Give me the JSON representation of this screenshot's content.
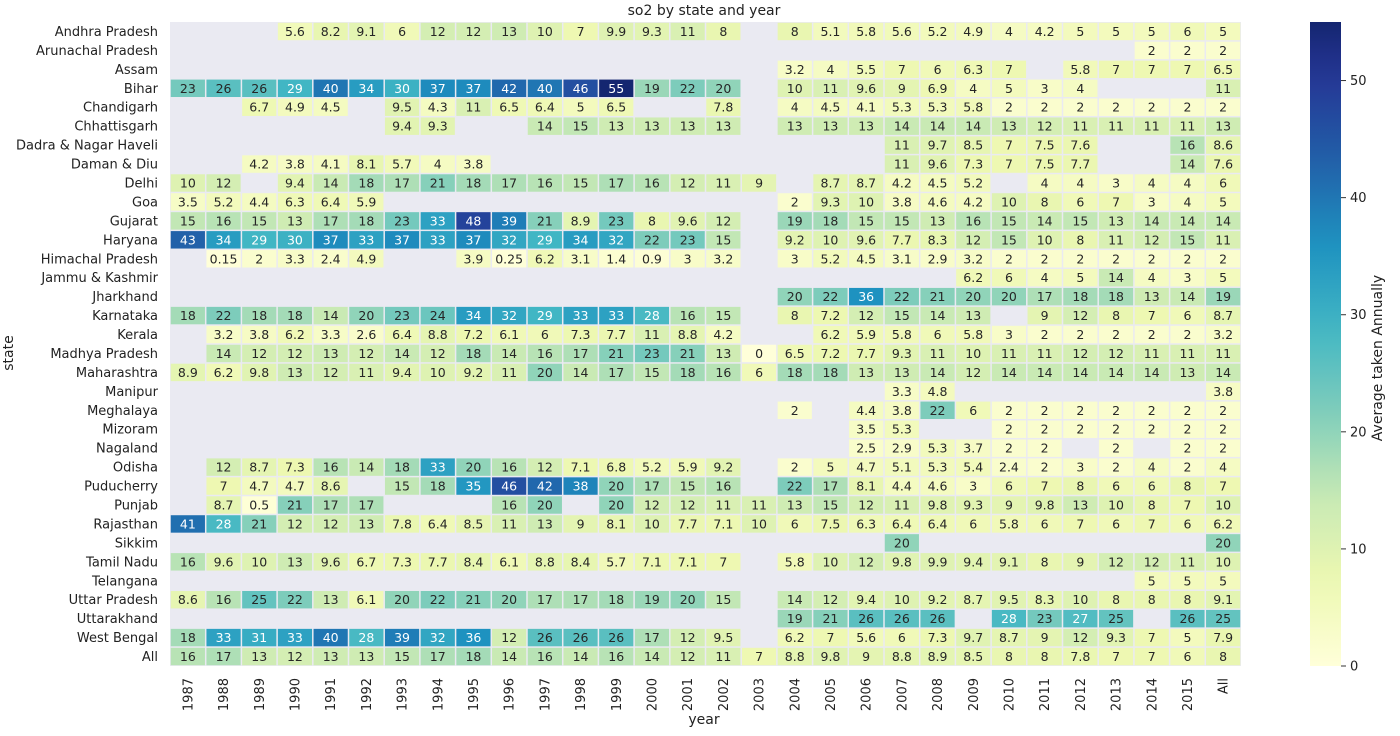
{
  "chart_data": {
    "type": "heatmap",
    "title": "so2 by state and year",
    "xlabel": "year",
    "ylabel": "state",
    "colorbar_label": "Average taken Annually",
    "colorbar_ticks": [
      "0",
      "10",
      "20",
      "30",
      "40",
      "50"
    ],
    "colorbar_range": [
      0,
      55
    ],
    "colormap": "YlGnBu",
    "missing_color": "#eaeaf2",
    "x": [
      "1987",
      "1988",
      "1989",
      "1990",
      "1991",
      "1992",
      "1993",
      "1994",
      "1995",
      "1996",
      "1997",
      "1998",
      "1999",
      "2000",
      "2001",
      "2002",
      "2003",
      "2004",
      "2005",
      "2006",
      "2007",
      "2008",
      "2009",
      "2010",
      "2011",
      "2012",
      "2013",
      "2014",
      "2015",
      "All"
    ],
    "y": [
      "Andhra Pradesh",
      "Arunachal Pradesh",
      "Assam",
      "Bihar",
      "Chandigarh",
      "Chhattisgarh",
      "Dadra & Nagar Haveli",
      "Daman & Diu",
      "Delhi",
      "Goa",
      "Gujarat",
      "Haryana",
      "Himachal Pradesh",
      "Jammu & Kashmir",
      "Jharkhand",
      "Karnataka",
      "Kerala",
      "Madhya Pradesh",
      "Maharashtra",
      "Manipur",
      "Meghalaya",
      "Mizoram",
      "Nagaland",
      "Odisha",
      "Puducherry",
      "Punjab",
      "Rajasthan",
      "Sikkim",
      "Tamil Nadu",
      "Telangana",
      "Uttar Pradesh",
      "Uttarakhand",
      "West Bengal",
      "All"
    ],
    "values": [
      [
        null,
        null,
        null,
        "5.6",
        "8.2",
        "9.1",
        "6",
        "12",
        "12",
        "13",
        "10",
        "7",
        "9.9",
        "9.3",
        "11",
        "8",
        null,
        "8",
        "5.1",
        "5.8",
        "5.6",
        "5.2",
        "4.9",
        "4",
        "4.2",
        "5",
        "5",
        "5",
        "6",
        "5"
      ],
      [
        null,
        null,
        null,
        null,
        null,
        null,
        null,
        null,
        null,
        null,
        null,
        null,
        null,
        null,
        null,
        null,
        null,
        null,
        null,
        null,
        null,
        null,
        null,
        null,
        null,
        null,
        null,
        "2",
        "2",
        "2"
      ],
      [
        null,
        null,
        null,
        null,
        null,
        null,
        null,
        null,
        null,
        null,
        null,
        null,
        null,
        null,
        null,
        null,
        null,
        "3.2",
        "4",
        "5.5",
        "7",
        "6",
        "6.3",
        "7",
        null,
        "5.8",
        "7",
        "7",
        "7",
        "6.5"
      ],
      [
        "23",
        "26",
        "26",
        "29",
        "40",
        "34",
        "30",
        "37",
        "37",
        "42",
        "40",
        "46",
        "55",
        "19",
        "22",
        "20",
        null,
        "10",
        "11",
        "9.6",
        "9",
        "6.9",
        "4",
        "5",
        "3",
        "4",
        null,
        null,
        null,
        "11"
      ],
      [
        null,
        null,
        "6.7",
        "4.9",
        "4.5",
        null,
        "9.5",
        "4.3",
        "11",
        "6.5",
        "6.4",
        "5",
        "6.5",
        null,
        null,
        "7.8",
        null,
        "4",
        "4.5",
        "4.1",
        "5.3",
        "5.3",
        "5.8",
        "2",
        "2",
        "2",
        "2",
        "2",
        "2",
        "2"
      ],
      [
        null,
        null,
        null,
        null,
        null,
        null,
        "9.4",
        "9.3",
        null,
        null,
        "14",
        "15",
        "13",
        "13",
        "13",
        "13",
        null,
        "13",
        "13",
        "13",
        "14",
        "14",
        "14",
        "13",
        "12",
        "11",
        "11",
        "11",
        "11",
        "13"
      ],
      [
        null,
        null,
        null,
        null,
        null,
        null,
        null,
        null,
        null,
        null,
        null,
        null,
        null,
        null,
        null,
        null,
        null,
        null,
        null,
        null,
        "11",
        "9.7",
        "8.5",
        "7",
        "7.5",
        "7.6",
        null,
        null,
        "16",
        "8.6"
      ],
      [
        null,
        null,
        "4.2",
        "3.8",
        "4.1",
        "8.1",
        "5.7",
        "4",
        "3.8",
        null,
        null,
        null,
        null,
        null,
        null,
        null,
        null,
        null,
        null,
        null,
        "11",
        "9.6",
        "7.3",
        "7",
        "7.5",
        "7.7",
        null,
        null,
        "14",
        "7.6"
      ],
      [
        "10",
        "12",
        null,
        "9.4",
        "14",
        "18",
        "17",
        "21",
        "18",
        "17",
        "16",
        "15",
        "17",
        "16",
        "12",
        "11",
        "9",
        null,
        "8.7",
        "8.7",
        "4.2",
        "4.5",
        "5.2",
        null,
        "4",
        "4",
        "3",
        "4",
        "4",
        "6"
      ],
      [
        "3.5",
        "5.2",
        "4.4",
        "6.3",
        "6.4",
        "5.9",
        null,
        null,
        null,
        null,
        null,
        null,
        null,
        null,
        null,
        null,
        null,
        "2",
        "9.3",
        "10",
        "3.8",
        "4.6",
        "4.2",
        "10",
        "8",
        "6",
        "7",
        "3",
        "4",
        "5"
      ],
      [
        "15",
        "16",
        "15",
        "13",
        "17",
        "18",
        "23",
        "33",
        "48",
        "39",
        "21",
        "8.9",
        "23",
        "8",
        "9.6",
        "12",
        null,
        "19",
        "18",
        "15",
        "15",
        "13",
        "16",
        "15",
        "14",
        "15",
        "13",
        "14",
        "14",
        "14"
      ],
      [
        "43",
        "34",
        "29",
        "30",
        "37",
        "33",
        "37",
        "33",
        "37",
        "32",
        "29",
        "34",
        "32",
        "22",
        "23",
        "15",
        null,
        "9.2",
        "10",
        "9.6",
        "7.7",
        "8.3",
        "12",
        "15",
        "10",
        "8",
        "11",
        "12",
        "15",
        "11"
      ],
      [
        null,
        "0.15",
        "2",
        "3.3",
        "2.4",
        "4.9",
        null,
        null,
        "3.9",
        "0.25",
        "6.2",
        "3.1",
        "1.4",
        "0.9",
        "3",
        "3.2",
        null,
        "3",
        "5.2",
        "4.5",
        "3.1",
        "2.9",
        "3.2",
        "2",
        "2",
        "2",
        "2",
        "2",
        "2",
        "2"
      ],
      [
        null,
        null,
        null,
        null,
        null,
        null,
        null,
        null,
        null,
        null,
        null,
        null,
        null,
        null,
        null,
        null,
        null,
        null,
        null,
        null,
        null,
        null,
        "6.2",
        "6",
        "4",
        "5",
        "14",
        "4",
        "3",
        "5"
      ],
      [
        null,
        null,
        null,
        null,
        null,
        null,
        null,
        null,
        null,
        null,
        null,
        null,
        null,
        null,
        null,
        null,
        null,
        "20",
        "22",
        "36",
        "22",
        "21",
        "20",
        "20",
        "17",
        "18",
        "18",
        "13",
        "14",
        "19"
      ],
      [
        "18",
        "22",
        "18",
        "18",
        "14",
        "20",
        "23",
        "24",
        "34",
        "32",
        "29",
        "33",
        "33",
        "28",
        "16",
        "15",
        null,
        "8",
        "7.2",
        "12",
        "15",
        "14",
        "13",
        null,
        "9",
        "12",
        "8",
        "7",
        "6",
        "8.7"
      ],
      [
        null,
        "3.2",
        "3.8",
        "6.2",
        "3.3",
        "2.6",
        "6.4",
        "8.8",
        "7.2",
        "6.1",
        "6",
        "7.3",
        "7.7",
        "11",
        "8.8",
        "4.2",
        null,
        null,
        "6.2",
        "5.9",
        "5.8",
        "6",
        "5.8",
        "3",
        "2",
        "2",
        "2",
        "2",
        "2",
        "3.2"
      ],
      [
        null,
        "14",
        "12",
        "12",
        "13",
        "12",
        "14",
        "12",
        "18",
        "14",
        "16",
        "17",
        "21",
        "23",
        "21",
        "13",
        "0",
        "6.5",
        "7.2",
        "7.7",
        "9.3",
        "11",
        "10",
        "11",
        "11",
        "12",
        "12",
        "11",
        "11",
        "11"
      ],
      [
        "8.9",
        "6.2",
        "9.8",
        "13",
        "12",
        "11",
        "9.4",
        "10",
        "9.2",
        "11",
        "20",
        "14",
        "17",
        "15",
        "18",
        "16",
        "6",
        "18",
        "18",
        "13",
        "13",
        "14",
        "12",
        "14",
        "14",
        "14",
        "14",
        "14",
        "13",
        "14"
      ],
      [
        null,
        null,
        null,
        null,
        null,
        null,
        null,
        null,
        null,
        null,
        null,
        null,
        null,
        null,
        null,
        null,
        null,
        null,
        null,
        null,
        "3.3",
        "4.8",
        null,
        null,
        null,
        null,
        null,
        null,
        null,
        "3.8"
      ],
      [
        null,
        null,
        null,
        null,
        null,
        null,
        null,
        null,
        null,
        null,
        null,
        null,
        null,
        null,
        null,
        null,
        null,
        "2",
        null,
        "4.4",
        "3.8",
        "22",
        "6",
        "2",
        "2",
        "2",
        "2",
        "2",
        "2",
        "2"
      ],
      [
        null,
        null,
        null,
        null,
        null,
        null,
        null,
        null,
        null,
        null,
        null,
        null,
        null,
        null,
        null,
        null,
        null,
        null,
        null,
        "3.5",
        "5.3",
        null,
        null,
        "2",
        "2",
        "2",
        "2",
        "2",
        "2",
        "2"
      ],
      [
        null,
        null,
        null,
        null,
        null,
        null,
        null,
        null,
        null,
        null,
        null,
        null,
        null,
        null,
        null,
        null,
        null,
        null,
        null,
        "2.5",
        "2.9",
        "5.3",
        "3.7",
        "2",
        "2",
        null,
        "2",
        null,
        "2",
        "2"
      ],
      [
        null,
        "12",
        "8.7",
        "7.3",
        "16",
        "14",
        "18",
        "33",
        "20",
        "16",
        "12",
        "7.1",
        "6.8",
        "5.2",
        "5.9",
        "9.2",
        null,
        "2",
        "5",
        "4.7",
        "5.1",
        "5.3",
        "5.4",
        "2.4",
        "2",
        "3",
        "2",
        "4",
        "2",
        "4"
      ],
      [
        null,
        "7",
        "4.7",
        "4.7",
        "8.6",
        null,
        "15",
        "18",
        "35",
        "46",
        "42",
        "38",
        "20",
        "17",
        "15",
        "16",
        null,
        "22",
        "17",
        "8.1",
        "4.4",
        "4.6",
        "3",
        "6",
        "7",
        "8",
        "6",
        "6",
        "8",
        "7"
      ],
      [
        null,
        "8.7",
        "0.5",
        "21",
        "17",
        "17",
        null,
        null,
        null,
        "16",
        "20",
        null,
        "20",
        "12",
        "12",
        "11",
        "11",
        "13",
        "15",
        "12",
        "11",
        "9.8",
        "9.3",
        "9",
        "9.8",
        "13",
        "10",
        "8",
        "7",
        "10"
      ],
      [
        "41",
        "28",
        "21",
        "12",
        "12",
        "13",
        "7.8",
        "6.4",
        "8.5",
        "11",
        "13",
        "9",
        "8.1",
        "10",
        "7.7",
        "7.1",
        "10",
        "6",
        "7.5",
        "6.3",
        "6.4",
        "6.4",
        "6",
        "5.8",
        "6",
        "7",
        "6",
        "7",
        "6",
        "6.2"
      ],
      [
        null,
        null,
        null,
        null,
        null,
        null,
        null,
        null,
        null,
        null,
        null,
        null,
        null,
        null,
        null,
        null,
        null,
        null,
        null,
        null,
        "20",
        null,
        null,
        null,
        null,
        null,
        null,
        null,
        null,
        "20"
      ],
      [
        "16",
        "9.6",
        "10",
        "13",
        "9.6",
        "6.7",
        "7.3",
        "7.7",
        "8.4",
        "6.1",
        "8.8",
        "8.4",
        "5.7",
        "7.1",
        "7.1",
        "7",
        null,
        "5.8",
        "10",
        "12",
        "9.8",
        "9.9",
        "9.4",
        "9.1",
        "8",
        "9",
        "12",
        "12",
        "11",
        "10"
      ],
      [
        null,
        null,
        null,
        null,
        null,
        null,
        null,
        null,
        null,
        null,
        null,
        null,
        null,
        null,
        null,
        null,
        null,
        null,
        null,
        null,
        null,
        null,
        null,
        null,
        null,
        null,
        null,
        "5",
        "5",
        "5"
      ],
      [
        "8.6",
        "16",
        "25",
        "22",
        "13",
        "6.1",
        "20",
        "22",
        "21",
        "20",
        "17",
        "17",
        "18",
        "19",
        "20",
        "15",
        null,
        "14",
        "12",
        "9.4",
        "10",
        "9.2",
        "8.7",
        "9.5",
        "8.3",
        "10",
        "8",
        "8",
        "8",
        "9.1"
      ],
      [
        null,
        null,
        null,
        null,
        null,
        null,
        null,
        null,
        null,
        null,
        null,
        null,
        null,
        null,
        null,
        null,
        null,
        "19",
        "21",
        "26",
        "26",
        "26",
        null,
        "28",
        "23",
        "27",
        "25",
        null,
        "26",
        "25"
      ],
      [
        "18",
        "33",
        "31",
        "33",
        "40",
        "28",
        "39",
        "32",
        "36",
        "12",
        "26",
        "26",
        "26",
        "17",
        "12",
        "9.5",
        null,
        "6.2",
        "7",
        "5.6",
        "6",
        "7.3",
        "9.7",
        "8.7",
        "9",
        "12",
        "9.3",
        "7",
        "5",
        "7.9"
      ],
      [
        "16",
        "17",
        "13",
        "12",
        "13",
        "13",
        "15",
        "17",
        "18",
        "14",
        "16",
        "14",
        "16",
        "14",
        "12",
        "11",
        "7",
        "8.8",
        "9.8",
        "9",
        "8.8",
        "8.9",
        "8.5",
        "8",
        "8",
        "7.8",
        "7",
        "7",
        "6",
        "8"
      ]
    ]
  }
}
